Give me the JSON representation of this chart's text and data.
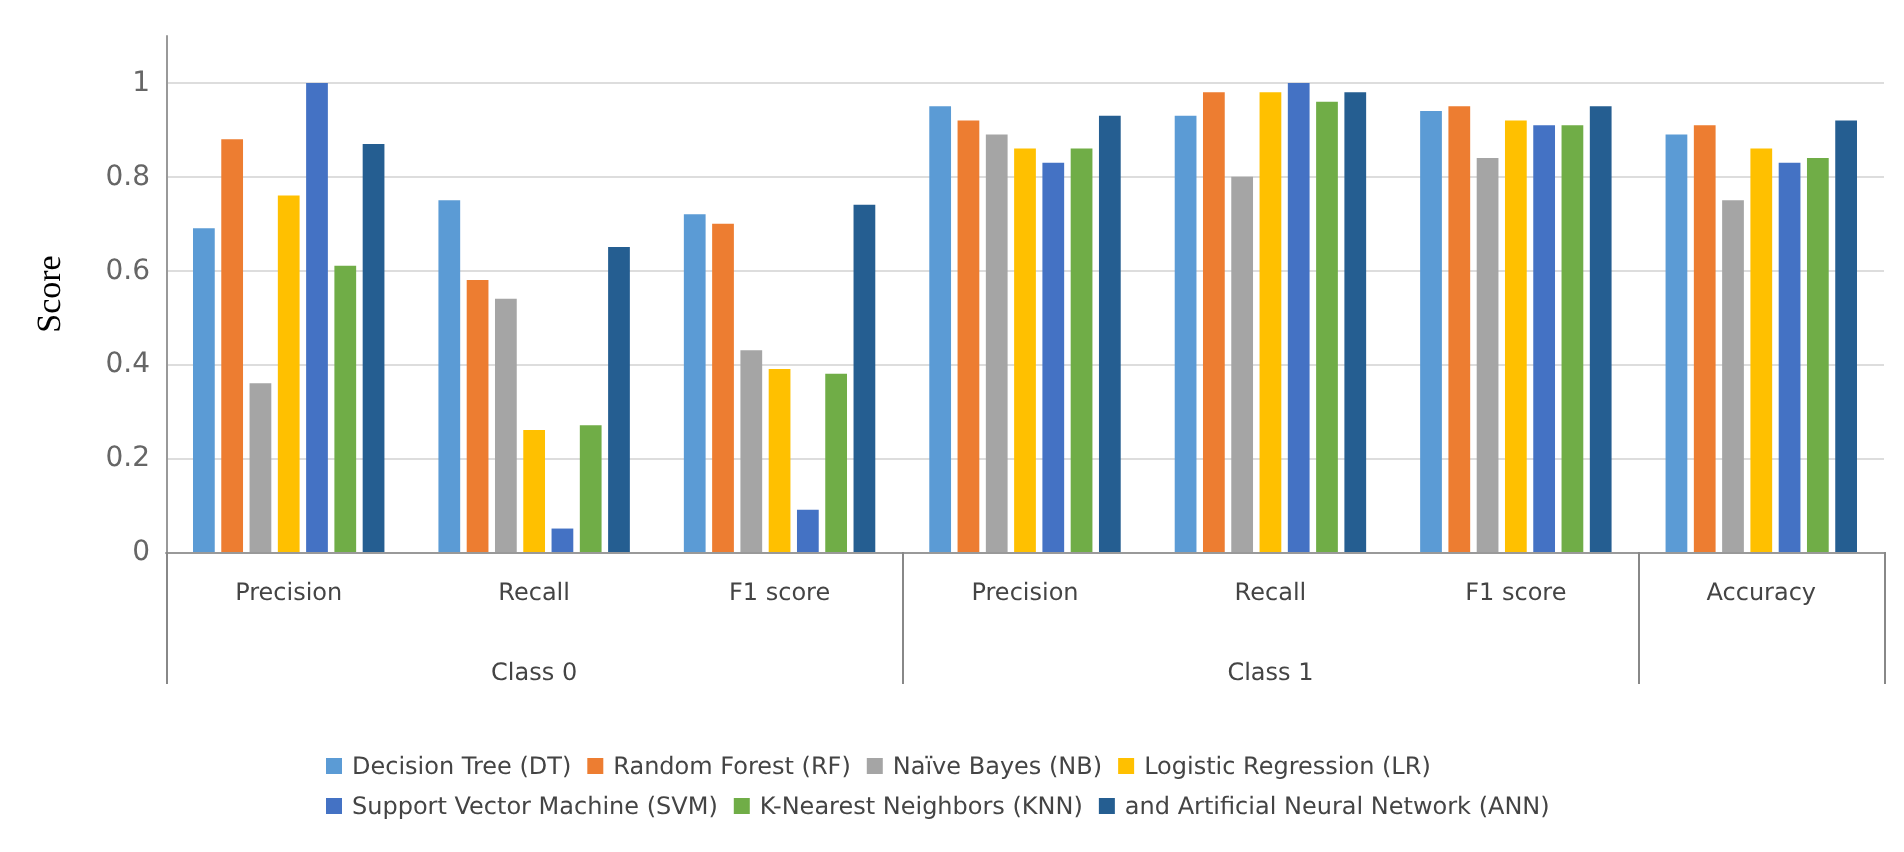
{
  "chart_data": {
    "type": "bar",
    "ylabel": "Score",
    "categories": [
      "Precision",
      "Recall",
      "F1 score",
      "Precision",
      "Recall",
      "F1 score",
      "Accuracy"
    ],
    "annotations": [
      "Class 0",
      "Class 1"
    ],
    "series": [
      {
        "name": "Decision Tree (DT)",
        "color": "#5b9bd5",
        "values": [
          0.69,
          0.75,
          0.72,
          0.95,
          0.93,
          0.94,
          0.89
        ]
      },
      {
        "name": "Random Forest (RF)",
        "color": "#ed7d31",
        "values": [
          0.88,
          0.58,
          0.7,
          0.92,
          0.98,
          0.95,
          0.91
        ]
      },
      {
        "name": "Naïve Bayes (NB)",
        "color": "#a5a5a5",
        "values": [
          0.36,
          0.54,
          0.43,
          0.89,
          0.8,
          0.84,
          0.75
        ]
      },
      {
        "name": "Logistic Regression (LR)",
        "color": "#ffc000",
        "values": [
          0.76,
          0.26,
          0.39,
          0.86,
          0.98,
          0.92,
          0.86
        ]
      },
      {
        "name": "Support Vector Machine (SVM)",
        "color": "#4472c4",
        "values": [
          1.0,
          0.05,
          0.09,
          0.83,
          1.0,
          0.91,
          0.83
        ]
      },
      {
        "name": "K-Nearest Neighbors (KNN)",
        "color": "#70ad47",
        "values": [
          0.61,
          0.27,
          0.38,
          0.86,
          0.96,
          0.91,
          0.84
        ]
      },
      {
        "name": "and Artificial Neural Network (ANN)",
        "color": "#255e91",
        "values": [
          0.87,
          0.65,
          0.74,
          0.93,
          0.98,
          0.95,
          0.92
        ]
      }
    ],
    "ylim": [
      0,
      1.1
    ],
    "yticks": [
      0,
      0.2,
      0.4,
      0.6,
      0.8,
      1
    ],
    "grid": "y",
    "legend": "bottom"
  }
}
